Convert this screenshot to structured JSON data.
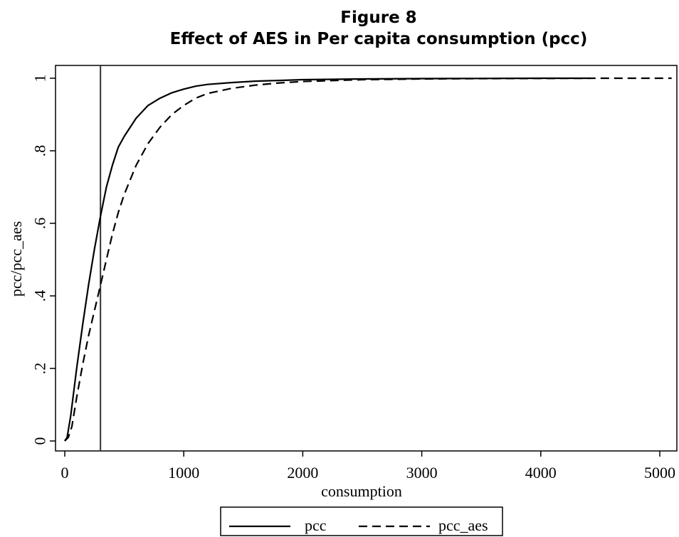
{
  "chart_data": {
    "type": "line",
    "title": "Figure 8",
    "subtitle": "Effect of AES in Per capita consumption (pcc)",
    "xlabel": "consumption",
    "ylabel": "pcc/pcc_aes",
    "xlim": [
      0,
      5100
    ],
    "ylim": [
      0,
      1
    ],
    "xticks": [
      0,
      1000,
      2000,
      3000,
      4000,
      5000
    ],
    "yticks": [
      0,
      0.2,
      0.4,
      0.6,
      0.8,
      1
    ],
    "ytick_labels": [
      "0",
      ".2",
      ".4",
      ".6",
      ".8",
      "1"
    ],
    "vline_x": 300,
    "grid": false,
    "legend_position": "bottom",
    "series": [
      {
        "name": "pcc",
        "style": "solid",
        "x": [
          0,
          20,
          50,
          100,
          150,
          200,
          250,
          300,
          350,
          400,
          450,
          500,
          600,
          700,
          800,
          900,
          1000,
          1100,
          1200,
          1400,
          1600,
          1800,
          2000,
          2500,
          3000,
          3500,
          4000,
          4420
        ],
        "y": [
          0,
          0.01,
          0.07,
          0.2,
          0.32,
          0.43,
          0.53,
          0.62,
          0.7,
          0.76,
          0.81,
          0.84,
          0.89,
          0.925,
          0.945,
          0.96,
          0.97,
          0.978,
          0.983,
          0.988,
          0.992,
          0.994,
          0.996,
          0.998,
          0.999,
          0.9995,
          1,
          1
        ]
      },
      {
        "name": "pcc_aes",
        "style": "dashed",
        "x": [
          0,
          30,
          60,
          100,
          150,
          200,
          250,
          300,
          350,
          400,
          450,
          500,
          600,
          700,
          800,
          900,
          1000,
          1100,
          1200,
          1400,
          1600,
          1800,
          2000,
          2500,
          3000,
          3500,
          4000,
          4500,
          5100
        ],
        "y": [
          0,
          0.01,
          0.04,
          0.12,
          0.21,
          0.29,
          0.36,
          0.43,
          0.5,
          0.57,
          0.63,
          0.68,
          0.76,
          0.82,
          0.865,
          0.9,
          0.925,
          0.945,
          0.958,
          0.972,
          0.981,
          0.987,
          0.991,
          0.996,
          0.998,
          0.999,
          0.9995,
          1,
          1
        ]
      }
    ]
  }
}
